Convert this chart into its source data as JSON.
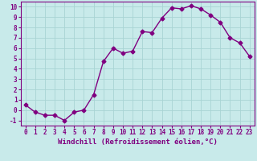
{
  "x": [
    0,
    1,
    2,
    3,
    4,
    5,
    6,
    7,
    8,
    9,
    10,
    11,
    12,
    13,
    14,
    15,
    16,
    17,
    18,
    19,
    20,
    21,
    22,
    23
  ],
  "y": [
    0.5,
    -0.2,
    -0.5,
    -0.5,
    -1.0,
    -0.2,
    0.0,
    1.5,
    4.7,
    6.0,
    5.5,
    5.7,
    7.6,
    7.5,
    8.9,
    9.9,
    9.8,
    10.1,
    9.8,
    9.2,
    8.5,
    7.0,
    6.5,
    5.2
  ],
  "line_color": "#800080",
  "marker": "D",
  "marker_size": 2.5,
  "background_color": "#c8eaea",
  "grid_color": "#a8d4d4",
  "xlabel": "Windchill (Refroidissement éolien,°C)",
  "xlim": [
    -0.5,
    23.5
  ],
  "ylim": [
    -1.5,
    10.5
  ],
  "yticks": [
    -1,
    0,
    1,
    2,
    3,
    4,
    5,
    6,
    7,
    8,
    9,
    10
  ],
  "xticks": [
    0,
    1,
    2,
    3,
    4,
    5,
    6,
    7,
    8,
    9,
    10,
    11,
    12,
    13,
    14,
    15,
    16,
    17,
    18,
    19,
    20,
    21,
    22,
    23
  ],
  "tick_fontsize": 5.5,
  "xlabel_fontsize": 6.5,
  "spine_color": "#800080",
  "line_width": 1.0
}
